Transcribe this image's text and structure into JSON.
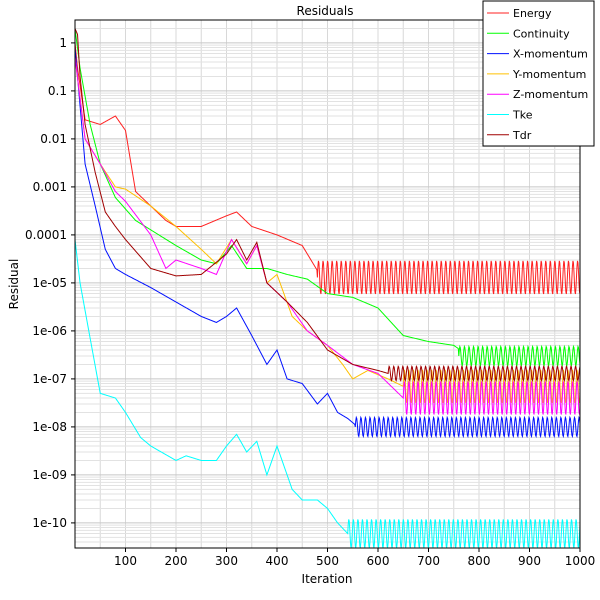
{
  "chart_data": {
    "type": "line",
    "title": "Residuals",
    "xlabel": "Iteration",
    "ylabel": "Residual",
    "xlim": [
      0,
      1000
    ],
    "ylim": [
      3e-11,
      3
    ],
    "yscale": "log",
    "grid": true,
    "legend_position": "top-right",
    "xticks": [
      "100",
      "200",
      "300",
      "400",
      "500",
      "600",
      "700",
      "800",
      "900",
      "1000"
    ],
    "yticks": [
      "1",
      "0.1",
      "0.01",
      "0.001",
      "0.0001",
      "1e-05",
      "1e-06",
      "1e-07",
      "1e-08",
      "1e-09",
      "1e-10"
    ],
    "series": [
      {
        "name": "Energy",
        "color": "#ff2020",
        "oscillation": [
          480,
          1000,
          1.3e-05,
          0.35
        ],
        "points": [
          [
            0,
            1
          ],
          [
            5,
            0.3
          ],
          [
            20,
            0.025
          ],
          [
            50,
            0.02
          ],
          [
            80,
            0.03
          ],
          [
            100,
            0.015
          ],
          [
            120,
            0.0008
          ],
          [
            150,
            0.0004
          ],
          [
            180,
            0.0002
          ],
          [
            200,
            0.00015
          ],
          [
            250,
            0.00015
          ],
          [
            300,
            0.00025
          ],
          [
            320,
            0.0003
          ],
          [
            350,
            0.00015
          ],
          [
            400,
            0.0001
          ],
          [
            450,
            6e-05
          ],
          [
            480,
            1.8e-05
          ],
          [
            520,
            1.3e-05
          ],
          [
            1000,
            1.3e-05
          ]
        ]
      },
      {
        "name": "Continuity",
        "color": "#00ff00",
        "oscillation": [
          760,
          1000,
          3e-07,
          0.2
        ],
        "points": [
          [
            0,
            2
          ],
          [
            10,
            0.3
          ],
          [
            30,
            0.02
          ],
          [
            50,
            0.003
          ],
          [
            80,
            0.0006
          ],
          [
            120,
            0.0002
          ],
          [
            200,
            6e-05
          ],
          [
            250,
            3e-05
          ],
          [
            280,
            2.5e-05
          ],
          [
            310,
            6e-05
          ],
          [
            340,
            2e-05
          ],
          [
            380,
            2e-05
          ],
          [
            420,
            1.5e-05
          ],
          [
            460,
            1.2e-05
          ],
          [
            500,
            6e-06
          ],
          [
            550,
            5e-06
          ],
          [
            600,
            3e-06
          ],
          [
            650,
            8e-07
          ],
          [
            700,
            6e-07
          ],
          [
            750,
            5e-07
          ],
          [
            780,
            3e-07
          ],
          [
            1000,
            3e-07
          ]
        ]
      },
      {
        "name": "X-momentum",
        "color": "#0010ff",
        "oscillation": [
          555,
          1000,
          1e-08,
          0.2
        ],
        "points": [
          [
            0,
            0.8
          ],
          [
            20,
            0.003
          ],
          [
            40,
            0.0004
          ],
          [
            60,
            5e-05
          ],
          [
            80,
            2e-05
          ],
          [
            100,
            1.5e-05
          ],
          [
            150,
            8e-06
          ],
          [
            200,
            4e-06
          ],
          [
            250,
            2e-06
          ],
          [
            280,
            1.5e-06
          ],
          [
            300,
            2e-06
          ],
          [
            320,
            3e-06
          ],
          [
            350,
            8e-07
          ],
          [
            380,
            2e-07
          ],
          [
            400,
            4e-07
          ],
          [
            420,
            1e-07
          ],
          [
            450,
            8e-08
          ],
          [
            480,
            3e-08
          ],
          [
            500,
            5e-08
          ],
          [
            520,
            2e-08
          ],
          [
            540,
            1.5e-08
          ],
          [
            560,
            1e-08
          ],
          [
            1000,
            1e-08
          ]
        ]
      },
      {
        "name": "Y-momentum",
        "color": "#ffc000",
        "oscillation": [
          650,
          1000,
          7e-08,
          0.35
        ],
        "points": [
          [
            0,
            0.5
          ],
          [
            20,
            0.01
          ],
          [
            50,
            0.003
          ],
          [
            80,
            0.001
          ],
          [
            100,
            0.0009
          ],
          [
            150,
            0.0004
          ],
          [
            200,
            0.00015
          ],
          [
            250,
            5e-05
          ],
          [
            280,
            2.5e-05
          ],
          [
            310,
            8e-05
          ],
          [
            340,
            2.5e-05
          ],
          [
            360,
            6e-05
          ],
          [
            380,
            1e-05
          ],
          [
            400,
            1.5e-05
          ],
          [
            430,
            2e-06
          ],
          [
            460,
            1e-06
          ],
          [
            500,
            5e-07
          ],
          [
            530,
            2e-07
          ],
          [
            550,
            1e-07
          ],
          [
            580,
            1.5e-07
          ],
          [
            620,
            1e-07
          ],
          [
            650,
            7e-08
          ],
          [
            1000,
            7e-08
          ]
        ]
      },
      {
        "name": "Z-momentum",
        "color": "#ff00ff",
        "oscillation": [
          650,
          1000,
          4e-08,
          0.35
        ],
        "points": [
          [
            0,
            0.5
          ],
          [
            20,
            0.01
          ],
          [
            50,
            0.003
          ],
          [
            80,
            0.0008
          ],
          [
            100,
            0.0005
          ],
          [
            150,
            0.0001
          ],
          [
            180,
            2e-05
          ],
          [
            200,
            3e-05
          ],
          [
            250,
            2e-05
          ],
          [
            280,
            1.5e-05
          ],
          [
            310,
            8e-05
          ],
          [
            340,
            2.5e-05
          ],
          [
            360,
            6e-05
          ],
          [
            380,
            1e-05
          ],
          [
            420,
            4e-06
          ],
          [
            460,
            1e-06
          ],
          [
            500,
            5e-07
          ],
          [
            550,
            2e-07
          ],
          [
            600,
            1.3e-07
          ],
          [
            650,
            4e-08
          ],
          [
            1000,
            4e-08
          ]
        ]
      },
      {
        "name": "Tke",
        "color": "#00ffff",
        "oscillation": [
          540,
          1000,
          6e-11,
          0.3
        ],
        "points": [
          [
            0,
            8e-05
          ],
          [
            10,
            1e-05
          ],
          [
            30,
            7e-07
          ],
          [
            50,
            5e-08
          ],
          [
            80,
            4e-08
          ],
          [
            100,
            2e-08
          ],
          [
            130,
            6e-09
          ],
          [
            150,
            4e-09
          ],
          [
            200,
            2e-09
          ],
          [
            220,
            2.5e-09
          ],
          [
            250,
            2e-09
          ],
          [
            280,
            2e-09
          ],
          [
            300,
            4e-09
          ],
          [
            320,
            7e-09
          ],
          [
            340,
            3e-09
          ],
          [
            360,
            5e-09
          ],
          [
            380,
            1e-09
          ],
          [
            400,
            4e-09
          ],
          [
            430,
            5e-10
          ],
          [
            450,
            3e-10
          ],
          [
            480,
            3e-10
          ],
          [
            500,
            2e-10
          ],
          [
            520,
            1e-10
          ],
          [
            540,
            6e-11
          ],
          [
            1000,
            6e-11
          ]
        ]
      },
      {
        "name": "Tdr",
        "color": "#a00000",
        "oscillation": [
          620,
          1000,
          1.3e-07,
          0.15
        ],
        "points": [
          [
            0,
            2
          ],
          [
            5,
            1.5
          ],
          [
            10,
            0.2
          ],
          [
            20,
            0.02
          ],
          [
            40,
            0.002
          ],
          [
            60,
            0.0003
          ],
          [
            80,
            0.00015
          ],
          [
            100,
            8e-05
          ],
          [
            150,
            2e-05
          ],
          [
            200,
            1.4e-05
          ],
          [
            250,
            1.5e-05
          ],
          [
            300,
            4e-05
          ],
          [
            320,
            8e-05
          ],
          [
            340,
            3e-05
          ],
          [
            360,
            7e-05
          ],
          [
            380,
            1e-05
          ],
          [
            420,
            4e-06
          ],
          [
            460,
            1.5e-06
          ],
          [
            500,
            4e-07
          ],
          [
            550,
            2e-07
          ],
          [
            600,
            1.5e-07
          ],
          [
            620,
            1.3e-07
          ],
          [
            1000,
            1.3e-07
          ]
        ]
      }
    ]
  }
}
